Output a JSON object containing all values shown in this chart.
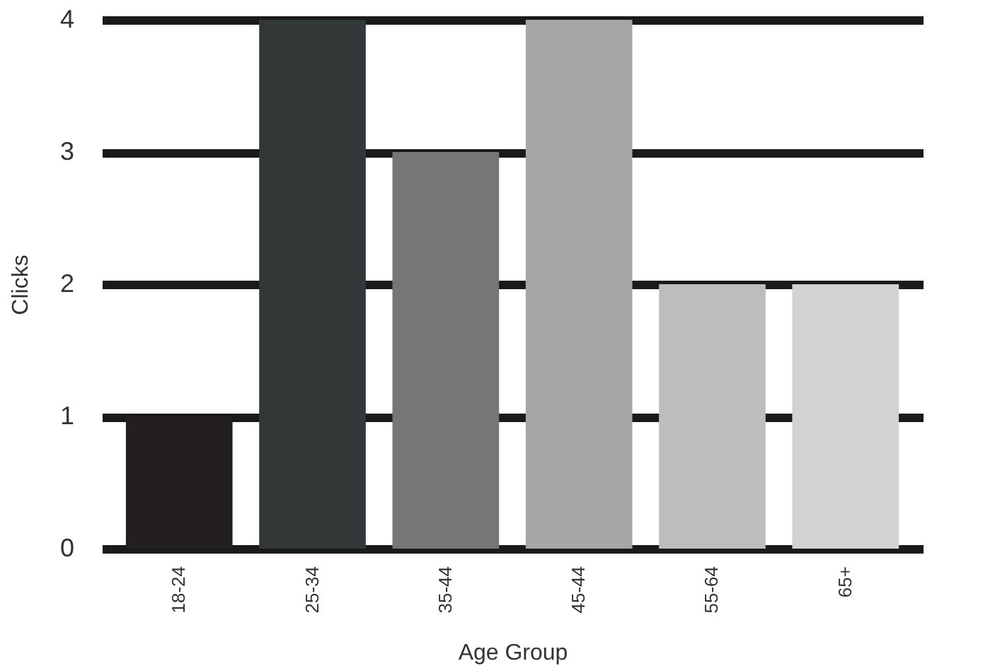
{
  "chart_data": {
    "type": "bar",
    "xlabel": "Age Group",
    "ylabel": "Clicks",
    "categories": [
      "18-24",
      "25-34",
      "35-44",
      "45-44",
      "55-64",
      "65+"
    ],
    "values": [
      1,
      4,
      3,
      4,
      2,
      2
    ],
    "colors": [
      "#231f20",
      "#323737",
      "#777575",
      "#a6a6a6",
      "#bdbdbd",
      "#d1d3d3"
    ],
    "ylim": [
      0,
      4
    ],
    "yticks": [
      0,
      1,
      2,
      3,
      4
    ],
    "grid": "y",
    "legend": false
  }
}
